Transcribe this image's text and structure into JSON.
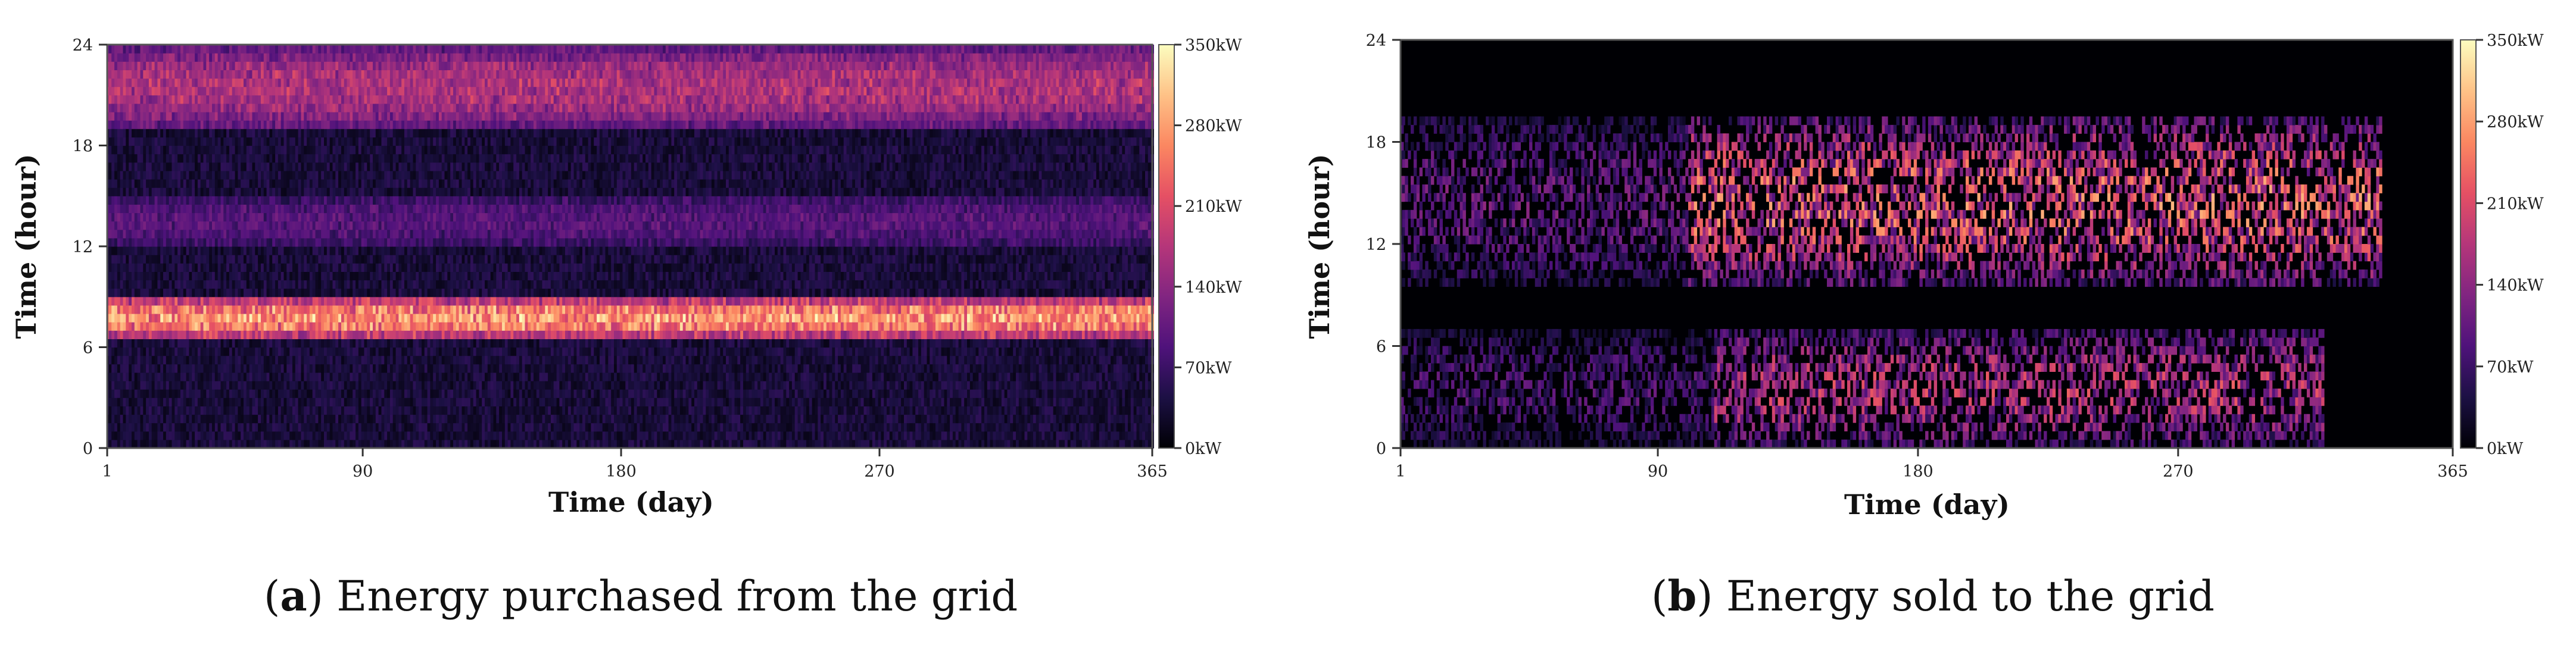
{
  "figure": {
    "colorscale": [
      "#000004",
      "#1c1044",
      "#4f127b",
      "#812581",
      "#b5367a",
      "#e55064",
      "#fb8761",
      "#fec287",
      "#fcfdbf"
    ],
    "background": "#ffffff"
  },
  "chart_data": [
    {
      "type": "heatmap",
      "title": "",
      "caption_letter": "a",
      "caption_text": "Energy purchased from the grid",
      "xlabel": "Time (day)",
      "ylabel": "Time (hour)",
      "xlim": [
        1,
        365
      ],
      "ylim": [
        0,
        24
      ],
      "xticks": [
        1,
        90,
        180,
        270,
        365
      ],
      "yticks": [
        0,
        6,
        12,
        18,
        24
      ],
      "colorbar": {
        "min": 0,
        "max": 350,
        "unit": "kW",
        "ticks": [
          "0kW",
          "70kW",
          "140kW",
          "210kW",
          "280kW",
          "350kW"
        ]
      },
      "pattern": {
        "baseline_kW": 35,
        "bands": [
          {
            "hours": [
              6.5,
              9
            ],
            "peak_kW": 250
          },
          {
            "hours": [
              19,
              24
            ],
            "peak_kW": 140
          },
          {
            "hours": [
              12,
              15
            ],
            "peak_kW": 60
          }
        ]
      }
    },
    {
      "type": "heatmap",
      "title": "",
      "caption_letter": "b",
      "caption_text": "Energy sold to the grid",
      "xlabel": "Time (day)",
      "ylabel": "Time (hour)",
      "xlim": [
        1,
        365
      ],
      "ylim": [
        0,
        24
      ],
      "xticks": [
        1,
        90,
        180,
        270,
        365
      ],
      "yticks": [
        0,
        6,
        12,
        18,
        24
      ],
      "colorbar": {
        "min": 0,
        "max": 350,
        "unit": "kW",
        "ticks": [
          "0kW",
          "70kW",
          "140kW",
          "210kW",
          "280kW",
          "350kW"
        ]
      },
      "pattern": {
        "baseline_kW": 0,
        "bands": [
          {
            "hours": [
              9.5,
              19.5
            ],
            "peak_kW": 230,
            "days": [
              100,
              340
            ]
          },
          {
            "hours": [
              0,
              7
            ],
            "peak_kW": 180,
            "days": [
              110,
              320
            ]
          },
          {
            "hours": [
              9.5,
              19.5
            ],
            "peak_kW": 110,
            "days": [
              1,
              100
            ]
          },
          {
            "hours": [
              0,
              7
            ],
            "peak_kW": 90,
            "days": [
              1,
              110
            ]
          }
        ]
      }
    }
  ]
}
